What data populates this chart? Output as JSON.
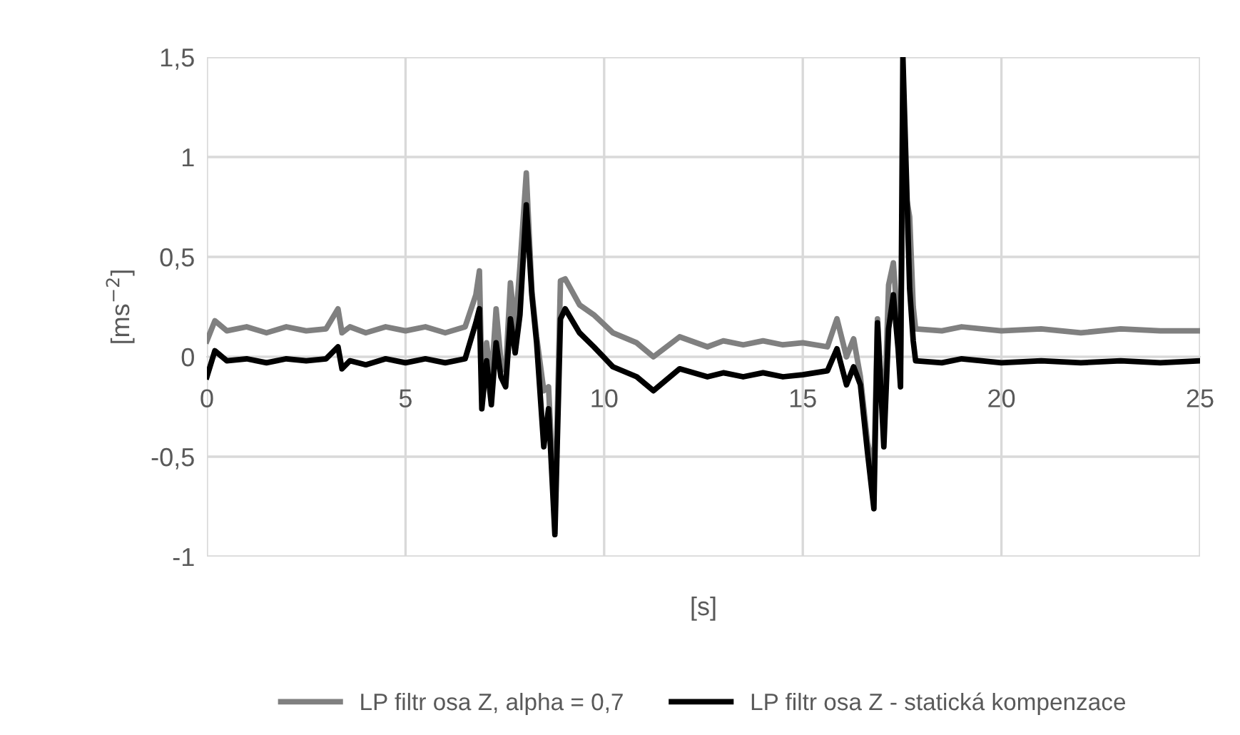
{
  "chart_data": {
    "type": "line",
    "x": [
      0,
      0.2,
      0.5,
      1,
      1.5,
      2,
      2.5,
      3,
      3.3,
      3.4,
      3.6,
      4,
      4.5,
      5,
      5.5,
      6,
      6.5,
      6.77,
      6.86,
      6.92,
      7.04,
      7.16,
      7.28,
      7.4,
      7.52,
      7.64,
      7.76,
      7.88,
      8.04,
      8.18,
      8.3,
      8.48,
      8.6,
      8.76,
      8.9,
      9.02,
      9.38,
      9.74,
      10.22,
      10.82,
      11.24,
      11.9,
      12.6,
      13,
      13.5,
      14,
      14.5,
      15,
      15.62,
      15.86,
      16.1,
      16.28,
      16.45,
      16.63,
      16.79,
      16.88,
      17.04,
      17.16,
      17.28,
      17.4,
      17.46,
      17.52,
      17.69,
      17.78,
      17.84,
      18.5,
      19,
      20,
      21,
      22,
      23,
      24,
      25
    ],
    "series": [
      {
        "name": "LP filtr osa Z, alpha = 0,7",
        "color": "#808080",
        "values": [
          0.08,
          0.18,
          0.13,
          0.15,
          0.12,
          0.15,
          0.13,
          0.14,
          0.24,
          0.12,
          0.15,
          0.12,
          0.15,
          0.13,
          0.15,
          0.12,
          0.15,
          0.31,
          0.43,
          -0.12,
          0.07,
          -0.12,
          0.24,
          -0.02,
          -0.07,
          0.37,
          0.14,
          0.45,
          0.92,
          0.33,
          0.1,
          -0.17,
          -0.15,
          -0.81,
          0.38,
          0.39,
          0.26,
          0.21,
          0.12,
          0.07,
          0.0,
          0.1,
          0.05,
          0.08,
          0.06,
          0.08,
          0.06,
          0.07,
          0.05,
          0.19,
          0.0,
          0.09,
          -0.1,
          -0.43,
          -0.57,
          0.19,
          -0.38,
          0.36,
          0.47,
          0.14,
          -0.04,
          0.9,
          0.7,
          0.25,
          0.14,
          0.13,
          0.15,
          0.13,
          0.14,
          0.12,
          0.14,
          0.13,
          0.13
        ]
      },
      {
        "name": "LP filtr osa Z - statická kompenzace",
        "color": "#000000",
        "values": [
          -0.1,
          0.03,
          -0.02,
          -0.01,
          -0.03,
          -0.01,
          -0.02,
          -0.01,
          0.05,
          -0.06,
          -0.02,
          -0.04,
          -0.01,
          -0.03,
          -0.01,
          -0.03,
          -0.01,
          0.17,
          0.24,
          -0.26,
          -0.02,
          -0.24,
          0.07,
          -0.1,
          -0.15,
          0.19,
          0.02,
          0.21,
          0.76,
          0.31,
          0.07,
          -0.45,
          -0.26,
          -0.89,
          0.19,
          0.24,
          0.12,
          0.05,
          -0.05,
          -0.1,
          -0.17,
          -0.06,
          -0.1,
          -0.08,
          -0.1,
          -0.08,
          -0.1,
          -0.09,
          -0.07,
          0.04,
          -0.14,
          -0.05,
          -0.14,
          -0.48,
          -0.76,
          0.17,
          -0.45,
          0.14,
          0.31,
          0.04,
          -0.15,
          1.5,
          0.34,
          0.08,
          -0.02,
          -0.03,
          -0.01,
          -0.03,
          -0.02,
          -0.03,
          -0.02,
          -0.03,
          -0.02
        ]
      }
    ],
    "xlabel": "[s]",
    "ylabel": "[ms$^{−2}$]",
    "xlim": [
      0,
      25
    ],
    "xticks": [
      0,
      5,
      10,
      15,
      20,
      25
    ],
    "ylim": [
      -1,
      1.5
    ],
    "yticks": [
      {
        "value": -1,
        "label": "-1"
      },
      {
        "value": -0.5,
        "label": "-0,5"
      },
      0,
      {
        "value": 0.5,
        "label": "0,5"
      },
      1,
      {
        "value": 1.5,
        "label": "1,5"
      }
    ],
    "grid": true,
    "legend": "bottom",
    "line_style": "solid",
    "marker": "none"
  }
}
